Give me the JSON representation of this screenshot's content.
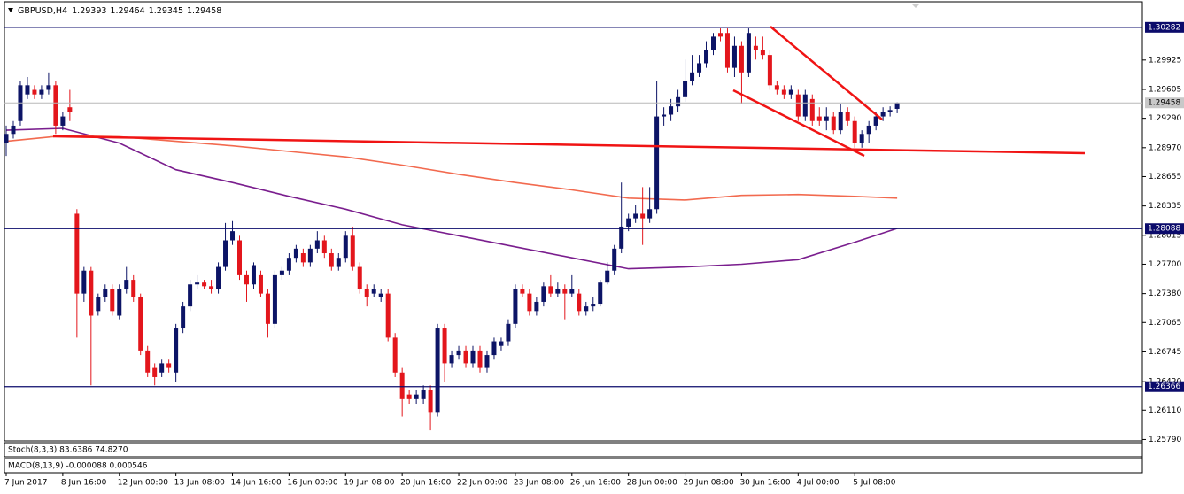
{
  "chart_data": {
    "type": "candlestick",
    "title": "GBPUSD,H4",
    "categories": [
      "7 Jun 2017",
      null,
      null,
      null,
      null,
      null,
      null,
      null,
      "8 Jun 16:00",
      null,
      null,
      null,
      null,
      null,
      null,
      null,
      "12 Jun 00:00",
      null,
      null,
      null,
      null,
      null,
      null,
      null,
      "13 Jun 08:00",
      null,
      null,
      null,
      null,
      null,
      null,
      null,
      "14 Jun 16:00",
      null,
      null,
      null,
      null,
      null,
      null,
      null,
      "16 Jun 00:00",
      null,
      null,
      null,
      null,
      null,
      null,
      null,
      "19 Jun 08:00",
      null,
      null,
      null,
      null,
      null,
      null,
      null,
      "20 Jun 16:00",
      null,
      null,
      null,
      null,
      null,
      null,
      null,
      "22 Jun 00:00",
      null,
      null,
      null,
      null,
      null,
      null,
      null,
      "23 Jun 08:00",
      null,
      null,
      null,
      null,
      null,
      null,
      null,
      "26 Jun 16:00",
      null,
      null,
      null,
      null,
      null,
      null,
      null,
      "28 Jun 00:00",
      null,
      null,
      null,
      null,
      null,
      null,
      null,
      "29 Jun 08:00",
      null,
      null,
      null,
      null,
      null,
      null,
      null,
      "30 Jun 16:00",
      null,
      null,
      null,
      null,
      null,
      null,
      null,
      "4 Jul 00:00",
      null,
      null,
      null,
      null,
      null,
      null,
      null,
      "5 Jul 08:00",
      null,
      null,
      null,
      null,
      null,
      null
    ],
    "open": [
      1.2902,
      1.2912,
      1.2926,
      1.2955,
      1.296,
      1.2955,
      1.296,
      1.2965,
      1.2921,
      1.2941,
      1.2825,
      1.2738,
      1.2763,
      1.2719,
      1.2734,
      1.2743,
      1.2714,
      1.2743,
      1.2753,
      1.2734,
      1.2676,
      1.2657,
      1.2652,
      1.2662,
      1.2652,
      1.27,
      1.2724,
      1.2748,
      1.275,
      1.2746,
      1.2743,
      1.2767,
      1.2796,
      1.2796,
      1.2758,
      1.2748,
      1.2758,
      1.2738,
      1.2705,
      1.2758,
      1.2763,
      1.2777,
      1.2782,
      1.2772,
      1.2787,
      1.2796,
      1.2782,
      1.2767,
      1.2777,
      1.2801,
      1.2767,
      1.2743,
      1.2738,
      1.2734,
      1.2738,
      1.269,
      1.2652,
      1.2628,
      1.2623,
      1.2623,
      1.2633,
      1.2609,
      1.27,
      1.2662,
      1.2671,
      1.2676,
      1.2662,
      1.2676,
      1.2657,
      1.2671,
      1.2681,
      1.2686,
      1.2705,
      1.2743,
      1.2738,
      1.2719,
      1.2729,
      1.2746,
      1.2738,
      1.2743,
      1.2738,
      1.2738,
      1.2719,
      1.2724,
      1.2727,
      1.275,
      1.2763,
      1.2787,
      1.2811,
      1.282,
      1.2825,
      1.282,
      1.283,
      1.2931,
      1.2933,
      1.2942,
      1.2952,
      1.297,
      1.2979,
      1.2989,
      1.3003,
      1.3022,
      1.3022,
      1.2984,
      1.3008,
      1.2979,
      1.3008,
      1.3003,
      1.2998,
      1.2965,
      1.296,
      1.2955,
      1.2955,
      1.2931,
      1.295,
      1.2931,
      1.2926,
      1.2931,
      1.2916,
      1.2936,
      1.2926,
      1.2902,
      1.2912,
      1.2921,
      1.2931,
      1.2936,
      1.29393
    ],
    "high": [
      1.2921,
      1.2926,
      1.297,
      1.2974,
      1.2965,
      1.2965,
      1.2979,
      1.297,
      1.2936,
      1.296,
      1.283,
      1.2767,
      1.2767,
      1.2738,
      1.2748,
      1.2748,
      1.2748,
      1.2767,
      1.2758,
      1.2738,
      1.2681,
      1.2662,
      1.2666,
      1.2666,
      1.2705,
      1.2729,
      1.2753,
      1.2758,
      1.2753,
      1.2753,
      1.2772,
      1.2815,
      1.2817,
      1.2801,
      1.2763,
      1.2772,
      1.2763,
      1.2743,
      1.2763,
      1.2767,
      1.2782,
      1.2791,
      1.2787,
      1.2791,
      1.2806,
      1.2801,
      1.2787,
      1.2782,
      1.2806,
      1.2811,
      1.2772,
      1.2748,
      1.2748,
      1.2743,
      1.2743,
      1.2695,
      1.2657,
      1.2633,
      1.2633,
      1.2638,
      1.2638,
      1.2705,
      1.2705,
      1.2676,
      1.2681,
      1.2681,
      1.2681,
      1.2681,
      1.2676,
      1.269,
      1.269,
      1.271,
      1.2748,
      1.2748,
      1.2743,
      1.2734,
      1.275,
      1.2758,
      1.275,
      1.2748,
      1.2758,
      1.2743,
      1.2729,
      1.2734,
      1.2753,
      1.2772,
      1.2791,
      1.2859,
      1.2825,
      1.2835,
      1.2854,
      1.2854,
      1.297,
      1.2941,
      1.295,
      1.296,
      1.2993,
      1.2998,
      1.2998,
      1.3013,
      1.3022,
      1.3027,
      1.3027,
      1.3018,
      1.3013,
      1.3027,
      1.3018,
      1.3018,
      1.3003,
      1.297,
      1.2965,
      1.2965,
      1.296,
      1.296,
      1.2955,
      1.2941,
      1.2941,
      1.2936,
      1.2945,
      1.2941,
      1.2931,
      1.2916,
      1.2926,
      1.2936,
      1.2941,
      1.2942,
      1.29464
    ],
    "low": [
      1.2888,
      1.2907,
      1.2921,
      1.295,
      1.295,
      1.295,
      1.2955,
      1.2912,
      1.2916,
      1.2926,
      1.269,
      1.2729,
      1.2638,
      1.2714,
      1.2729,
      1.2714,
      1.271,
      1.2738,
      1.2729,
      1.2671,
      1.2647,
      1.2638,
      1.2647,
      1.2652,
      1.2642,
      1.2695,
      1.2719,
      1.2743,
      1.2743,
      1.2738,
      1.2738,
      1.2763,
      1.2791,
      1.2753,
      1.2729,
      1.2743,
      1.2734,
      1.269,
      1.27,
      1.2753,
      1.2758,
      1.2772,
      1.2767,
      1.2767,
      1.2782,
      1.2777,
      1.2763,
      1.2763,
      1.2772,
      1.2763,
      1.2738,
      1.2724,
      1.2734,
      1.2729,
      1.2686,
      1.2647,
      1.2604,
      1.2618,
      1.2618,
      1.2618,
      1.2589,
      1.2604,
      1.2642,
      1.2657,
      1.2666,
      1.2657,
      1.2657,
      1.2652,
      1.2652,
      1.2666,
      1.2676,
      1.2681,
      1.27,
      1.2734,
      1.2714,
      1.2714,
      1.2724,
      1.2734,
      1.2734,
      1.271,
      1.2734,
      1.2714,
      1.2714,
      1.2719,
      1.2724,
      1.2748,
      1.2758,
      1.2782,
      1.2806,
      1.2815,
      1.2791,
      1.2815,
      1.2825,
      1.2921,
      1.2926,
      1.2936,
      1.2947,
      1.2965,
      1.2974,
      1.2984,
      1.2998,
      1.3013,
      1.2979,
      1.2974,
      1.2945,
      1.2974,
      1.2993,
      1.2993,
      1.296,
      1.2955,
      1.295,
      1.295,
      1.2926,
      1.2926,
      1.2921,
      1.2921,
      1.2916,
      1.2912,
      1.2912,
      1.2921,
      1.2897,
      1.2897,
      1.2902,
      1.2916,
      1.2926,
      1.2931,
      1.29345
    ],
    "close": [
      1.2912,
      1.2921,
      1.2965,
      1.2965,
      1.2955,
      1.296,
      1.2965,
      1.2921,
      1.2931,
      1.2936,
      1.2738,
      1.2763,
      1.2714,
      1.2734,
      1.2743,
      1.2719,
      1.2743,
      1.2753,
      1.2734,
      1.2676,
      1.2652,
      1.2647,
      1.2662,
      1.2657,
      1.27,
      1.2724,
      1.2748,
      1.275,
      1.2746,
      1.2743,
      1.2767,
      1.2796,
      1.2806,
      1.2758,
      1.2748,
      1.2769,
      1.2738,
      1.2705,
      1.2758,
      1.2763,
      1.2777,
      1.2787,
      1.2772,
      1.2787,
      1.2796,
      1.2782,
      1.2767,
      1.2777,
      1.2801,
      1.2767,
      1.2743,
      1.2734,
      1.2743,
      1.2738,
      1.269,
      1.2652,
      1.2623,
      1.2623,
      1.2628,
      1.2633,
      1.2609,
      1.27,
      1.2662,
      1.2671,
      1.2676,
      1.2662,
      1.2676,
      1.2657,
      1.2671,
      1.2686,
      1.2686,
      1.2705,
      1.2743,
      1.2738,
      1.2719,
      1.2729,
      1.2746,
      1.2738,
      1.2743,
      1.2738,
      1.2743,
      1.2719,
      1.2724,
      1.2727,
      1.275,
      1.2763,
      1.2787,
      1.2811,
      1.282,
      1.2825,
      1.282,
      1.283,
      1.2931,
      1.2933,
      1.2942,
      1.2952,
      1.297,
      1.2979,
      1.2989,
      1.3003,
      1.3018,
      1.3018,
      1.2984,
      1.3008,
      1.2979,
      1.3022,
      1.3003,
      1.2998,
      1.2965,
      1.296,
      1.2955,
      1.296,
      1.2931,
      1.2955,
      1.2926,
      1.2926,
      1.2931,
      1.2916,
      1.2936,
      1.2926,
      1.2902,
      1.2912,
      1.2921,
      1.2931,
      1.2936,
      1.2938,
      1.29458
    ],
    "bull_color": "#0c1466",
    "bear_color": "#e3161c",
    "ma": [
      {
        "color": "#7a1e8e",
        "x": [
          0,
          8,
          16,
          24,
          32,
          40,
          48,
          56,
          64,
          72,
          80,
          88,
          96,
          104,
          112,
          120,
          126
        ],
        "values": [
          1.2916,
          1.2918,
          1.2902,
          1.2873,
          1.2859,
          1.2844,
          1.283,
          1.2813,
          1.2801,
          1.2789,
          1.2777,
          1.2765,
          1.2767,
          1.277,
          1.2775,
          1.2794,
          1.2809
        ]
      },
      {
        "color": "#f26a4f",
        "x": [
          0,
          8,
          16,
          24,
          32,
          40,
          48,
          56,
          64,
          72,
          80,
          88,
          96,
          104,
          112,
          120,
          126
        ],
        "values": [
          1.2904,
          1.291,
          1.2909,
          1.2904,
          1.2899,
          1.2893,
          1.2887,
          1.2878,
          1.2868,
          1.2859,
          1.2851,
          1.2842,
          1.284,
          1.2845,
          1.2846,
          1.2844,
          1.2842
        ]
      }
    ],
    "ylim": [
      1.25775,
      1.3056
    ],
    "yticks": [
      1.29925,
      1.29605,
      {
        "value": 1.2929,
        "label": "1.29290"
      },
      {
        "value": 1.2897,
        "label": "1.28970"
      },
      1.28655,
      1.28335,
      1.28015,
      {
        "value": 1.277,
        "label": "1.27700"
      },
      {
        "value": 1.2738,
        "label": "1.27380"
      },
      1.27065,
      1.26745,
      {
        "value": 1.2642,
        "label": "1.26420"
      },
      {
        "value": 1.2611,
        "label": "1.26110"
      },
      {
        "value": 1.2579,
        "label": "1.25790"
      }
    ],
    "levels": [
      1.30282,
      1.28088,
      1.26366
    ],
    "level_color": "#0b0b6b",
    "indicators": [
      "Stoch(8,3,3) 83.6386 74.8270",
      "MACD(8,13,9) -0.000088 0.000546"
    ]
  }
}
